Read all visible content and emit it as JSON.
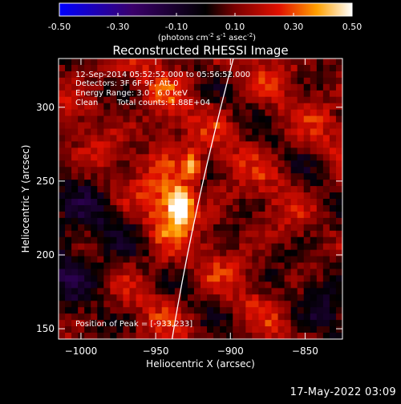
{
  "colorbar": {
    "ticks": [
      "-0.50",
      "-0.30",
      "-0.10",
      "0.10",
      "0.30",
      "0.50"
    ],
    "units": "(photons cm",
    "units_exp1": "-2",
    "units_mid": " s",
    "units_exp2": "-1",
    "units_end": " asec",
    "units_exp3": "-2",
    "units_close": ")"
  },
  "plot": {
    "title": "Reconstructed RHESSI Image",
    "info_time": "12-Sep-2014 05:52:52.000 to 05:56:52.000",
    "info_detectors": "Detectors: 3F 6F 9F, Att 0",
    "info_energy": "Energy Range: 3.0 - 6.0 keV",
    "info_clean": "Clean",
    "info_counts": "Total counts: 1.88E+04",
    "peak": "Position of Peak = [-933,233]",
    "xlabel": "Heliocentric X (arcsec)",
    "ylabel": "Heliocentric Y (arcsec)"
  },
  "footer": {
    "timestamp": "17-May-2022 03:09"
  },
  "colors": {
    "background": "#000000",
    "limb": "#ffffff"
  },
  "chart_data": {
    "type": "heatmap",
    "title": "Reconstructed RHESSI Image",
    "xlabel": "Heliocentric X (arcsec)",
    "ylabel": "Heliocentric Y (arcsec)",
    "xlim": [
      -1015,
      -825
    ],
    "ylim": [
      143,
      333
    ],
    "xticks": [
      -1000,
      -950,
      -900,
      -850
    ],
    "yticks": [
      150,
      200,
      250,
      300
    ],
    "color_range": [
      -0.5,
      0.5
    ],
    "colormap": "blue-black-red-yellow-white",
    "peak_position": [
      -933,
      233
    ],
    "sources": [
      {
        "x": -933,
        "y": 233,
        "value": 0.5
      },
      {
        "x": -926,
        "y": 260,
        "value": 0.36
      }
    ],
    "limb_curve": [
      [
        -939,
        143
      ],
      [
        -925,
        230
      ],
      [
        -898,
        333
      ]
    ]
  }
}
